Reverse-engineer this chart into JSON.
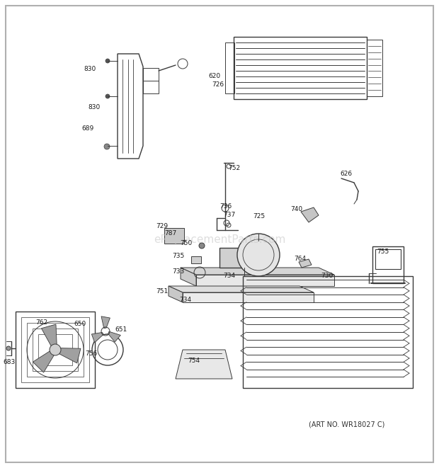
{
  "art_no": "(ART NO. WR18027 C)",
  "watermark": "eReplacementParts.com",
  "bg_color": "#ffffff",
  "lc": "#3a3a3a",
  "tc": "#2a2a2a",
  "border": "#b0b0b0",
  "labels": [
    [
      136,
      97,
      "830",
      "right"
    ],
    [
      142,
      152,
      "830",
      "right"
    ],
    [
      133,
      182,
      "689",
      "right"
    ],
    [
      294,
      108,
      "620",
      "left"
    ],
    [
      299,
      120,
      "726",
      "left"
    ],
    [
      322,
      237,
      "752",
      "left"
    ],
    [
      310,
      291,
      "736",
      "left"
    ],
    [
      315,
      303,
      "737",
      "left"
    ],
    [
      237,
      319,
      "729",
      "right"
    ],
    [
      249,
      330,
      "787",
      "right"
    ],
    [
      271,
      344,
      "750",
      "right"
    ],
    [
      260,
      362,
      "735",
      "right"
    ],
    [
      260,
      383,
      "733",
      "right"
    ],
    [
      237,
      411,
      "751",
      "right"
    ],
    [
      315,
      389,
      "734",
      "left"
    ],
    [
      270,
      423,
      "734",
      "right"
    ],
    [
      357,
      306,
      "725",
      "left"
    ],
    [
      410,
      296,
      "740",
      "left"
    ],
    [
      415,
      366,
      "764",
      "left"
    ],
    [
      453,
      390,
      "730",
      "left"
    ],
    [
      532,
      355,
      "755",
      "left"
    ],
    [
      480,
      245,
      "626",
      "left"
    ],
    [
      162,
      466,
      "651",
      "left"
    ],
    [
      67,
      456,
      "762",
      "right"
    ],
    [
      104,
      457,
      "650",
      "left"
    ],
    [
      120,
      500,
      "756",
      "left"
    ],
    [
      22,
      512,
      "683",
      "right"
    ],
    [
      265,
      510,
      "754",
      "left"
    ]
  ]
}
